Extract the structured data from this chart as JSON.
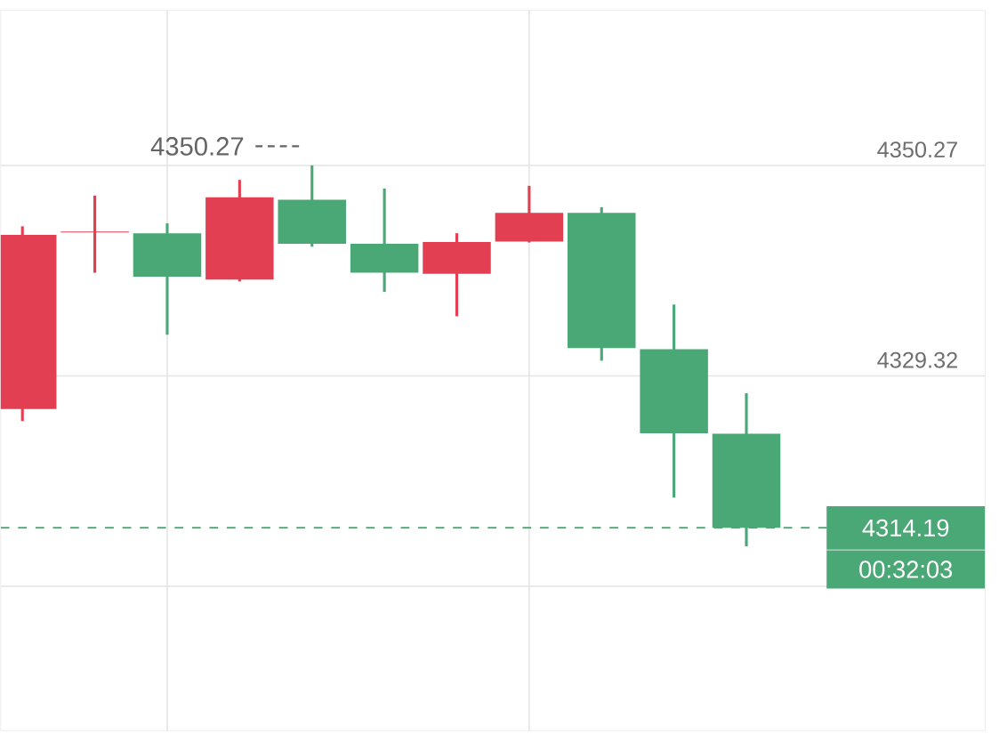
{
  "chart_data": {
    "type": "candlestick",
    "categories": [
      null,
      null,
      null,
      null,
      null,
      null,
      null,
      null,
      null,
      null,
      null
    ],
    "ohlc": [
      [
        4326.03,
        4344.21,
        4324.82,
        4343.35
      ],
      [
        4343.6,
        4347.27,
        4339.59,
        4343.7
      ],
      [
        4343.52,
        4344.5,
        4333.42,
        4339.19
      ],
      [
        4338.9,
        4348.83,
        4338.72,
        4347.1
      ],
      [
        4346.86,
        4350.27,
        4342.18,
        4342.48
      ],
      [
        4342.48,
        4347.97,
        4337.68,
        4339.59
      ],
      [
        4339.48,
        4343.52,
        4335.26,
        4342.65
      ],
      [
        4342.7,
        4348.24,
        4342.6,
        4345.54
      ],
      [
        4345.54,
        4346.11,
        4330.83,
        4332.09
      ],
      [
        4331.97,
        4336.42,
        4317.2,
        4323.61
      ],
      [
        4323.56,
        4327.59,
        4312.35,
        4314.19
      ]
    ],
    "colors": [
      "#e24052",
      "#e24052",
      "#4aa876",
      "#e24052",
      "#4aa876",
      "#4aa876",
      "#e24052",
      "#e24052",
      "#4aa876",
      "#4aa876",
      "#4aa876"
    ],
    "ylim": [
      4294.0,
      4365.7
    ],
    "yticks": [
      4350.27,
      4329.32,
      {
        "value": 4308.37,
        "label": null
      }
    ],
    "tick_labels": "y",
    "grid": true,
    "ref_lines": [
      {
        "axis": "y",
        "value": 4314.19,
        "label": "4314.19",
        "color": "#4aa876",
        "line_style": "dashed"
      }
    ],
    "annotations": [
      "4350.27",
      "00:32:03"
    ]
  }
}
